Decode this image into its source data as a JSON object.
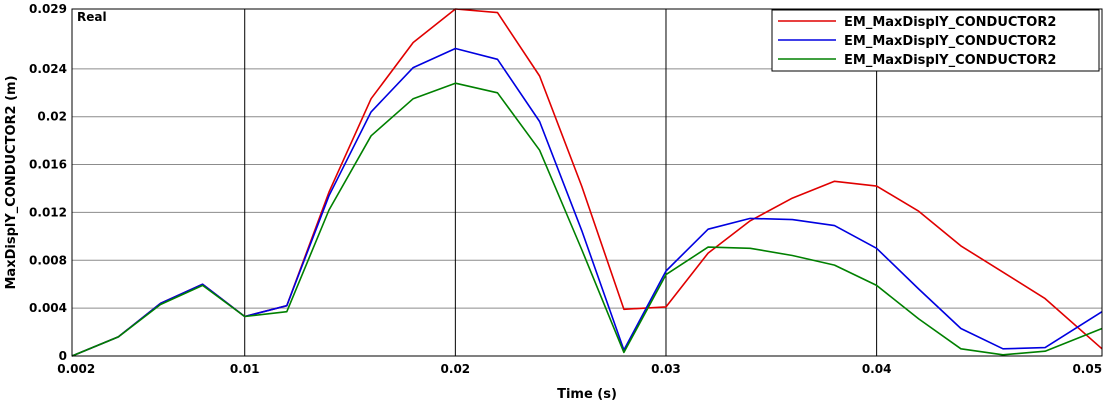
{
  "chart_data": {
    "type": "line",
    "annotation": "Real",
    "xlabel": "Time (s)",
    "ylabel": "MaxDisplY_CONDUCTOR2 (m)",
    "xlim": [
      0.0018,
      0.0507
    ],
    "ylim": [
      0,
      0.029
    ],
    "x_ticks": [
      0.002,
      0.01,
      0.02,
      0.03,
      0.04,
      0.05
    ],
    "x_tick_labels": [
      "0.002",
      "0.01",
      "0.02",
      "0.03",
      "0.04",
      "0.05"
    ],
    "y_ticks": [
      0,
      0.004,
      0.008,
      0.012,
      0.016,
      0.02,
      0.024,
      0.029
    ],
    "y_tick_labels": [
      "0",
      "0.004",
      "0.008",
      "0.012",
      "0.016",
      "0.02",
      "0.024",
      "0.029"
    ],
    "major_x_grid": [
      0.01,
      0.02,
      0.03,
      0.04
    ],
    "grid": true,
    "legend_position": "top-right",
    "series": [
      {
        "name": "EM_MaxDisplY_CONDUCTOR2",
        "color": "#e00000",
        "x": [
          0.0018,
          0.004,
          0.006,
          0.008,
          0.01,
          0.012,
          0.014,
          0.016,
          0.018,
          0.02,
          0.022,
          0.024,
          0.026,
          0.028,
          0.03,
          0.032,
          0.034,
          0.036,
          0.038,
          0.04,
          0.042,
          0.044,
          0.046,
          0.048,
          0.0507
        ],
        "values": [
          0,
          0.0016,
          0.0044,
          0.006,
          0.0033,
          0.0042,
          0.0137,
          0.0215,
          0.0262,
          0.029,
          0.0287,
          0.0234,
          0.0142,
          0.0039,
          0.0041,
          0.0086,
          0.0113,
          0.0132,
          0.0146,
          0.0142,
          0.0121,
          0.0092,
          0.007,
          0.0048,
          0.0006
        ]
      },
      {
        "name": "EM_MaxDisplY_CONDUCTOR2",
        "color": "#0000e0",
        "x": [
          0.0018,
          0.004,
          0.006,
          0.008,
          0.01,
          0.012,
          0.014,
          0.016,
          0.018,
          0.02,
          0.022,
          0.024,
          0.026,
          0.028,
          0.03,
          0.032,
          0.034,
          0.036,
          0.038,
          0.04,
          0.042,
          0.044,
          0.046,
          0.048,
          0.0507
        ],
        "values": [
          0,
          0.0016,
          0.0044,
          0.006,
          0.0033,
          0.0042,
          0.0134,
          0.0204,
          0.0241,
          0.0257,
          0.0248,
          0.0196,
          0.0105,
          0.0005,
          0.0071,
          0.0106,
          0.0115,
          0.0114,
          0.0109,
          0.009,
          0.0056,
          0.0023,
          0.0006,
          0.0007,
          0.0037
        ]
      },
      {
        "name": "EM_MaxDisplY_CONDUCTOR2",
        "color": "#008000",
        "x": [
          0.0018,
          0.004,
          0.006,
          0.008,
          0.01,
          0.012,
          0.014,
          0.016,
          0.018,
          0.02,
          0.022,
          0.024,
          0.026,
          0.028,
          0.03,
          0.032,
          0.034,
          0.036,
          0.038,
          0.04,
          0.042,
          0.044,
          0.046,
          0.048,
          0.0507
        ],
        "values": [
          0,
          0.0016,
          0.0043,
          0.0059,
          0.0033,
          0.0037,
          0.0122,
          0.0184,
          0.0215,
          0.0228,
          0.022,
          0.0172,
          0.0089,
          0.0003,
          0.0068,
          0.0091,
          0.009,
          0.0084,
          0.0076,
          0.0059,
          0.0031,
          0.0006,
          0.0001,
          0.0004,
          0.0023
        ]
      }
    ]
  }
}
